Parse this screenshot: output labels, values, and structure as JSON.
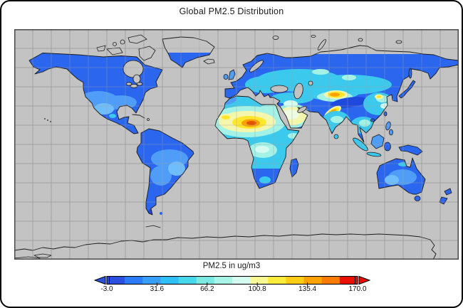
{
  "title": "Global PM2.5 Distribution",
  "map": {
    "ocean_color": "#c3c3c3",
    "grid_color": "#a0a0a0",
    "frame_color": "#4a4a4a",
    "coastline_color": "#1a1a1a",
    "grid_cols": 24,
    "grid_rows": 12,
    "palette": {
      "land_low_blue": "#2a66ee",
      "land_blue_light": "#4f9df6",
      "land_sky": "#6fbdfa",
      "cyan": "#3cc9ee",
      "cyan_light": "#a4f2e6",
      "cyan_pale": "#d6fcf2",
      "yellow_pale": "#f4f6ae",
      "yellow": "#ffe72e",
      "orange": "#ffa200",
      "orange_red": "#e25400",
      "navy": "#1d49dc",
      "no_data_gray": "#c3c3c3",
      "pale_white": "#eefbe2"
    }
  },
  "colorbar": {
    "label": "PM2.5 in ug/m3",
    "min": -3.0,
    "max": 170.0,
    "ticks": [
      "-3.0",
      "31.6",
      "66.2",
      "100.8",
      "135.4",
      "170.0"
    ],
    "tick_values": [
      -3.0,
      31.6,
      66.2,
      100.8,
      135.4,
      170.0
    ],
    "segments": [
      "#2b50e0",
      "#2b7cfa",
      "#38a0fc",
      "#2fc0f6",
      "#48d8ec",
      "#7ceae0",
      "#a8f4e6",
      "#d4fcf0",
      "#f8f894",
      "#fcec3c",
      "#ffce14",
      "#ffa200",
      "#f97c00",
      "#ea1000"
    ],
    "arrow_left_color": "#2b50e0",
    "arrow_right_color": "#e80c00"
  },
  "chart_data": {
    "type": "heatmap",
    "title": "Global PM2.5 Distribution",
    "colorbar_label": "PM2.5 in ug/m3",
    "units": "ug/m3",
    "scale_ticks": [
      -3.0,
      31.6,
      66.2,
      100.8,
      135.4,
      170.0
    ],
    "scale_range": [
      -3.0,
      170.0
    ],
    "projection": "equirectangular world map, lon -180..180, lat 90..-90",
    "graticule_spacing_deg": 15,
    "grid": true,
    "legend_position": "bottom, horizontal colorbar with triangular out-of-range arrows",
    "regions": [
      {
        "name": "Central Sahara (Niger/Chad)",
        "approx_pm25": 160,
        "appearance": "orange-red hotspot"
      },
      {
        "name": "Western Sahara / Mali",
        "approx_pm25": 120,
        "appearance": "yellow spot"
      },
      {
        "name": "Sahara fringe / Sahel",
        "approx_pm25": 95,
        "appearance": "pale yellow ring"
      },
      {
        "name": "Arabian Peninsula",
        "approx_pm25": 90,
        "appearance": "pale yellow-white"
      },
      {
        "name": "Taklamakan Desert (NW China)",
        "approx_pm25": 135,
        "appearance": "yellow-orange hotspot"
      },
      {
        "name": "Indus Valley (Pakistan / NW India)",
        "approx_pm25": 140,
        "appearance": "orange streak"
      },
      {
        "name": "Central China spot",
        "approx_pm25": 110,
        "appearance": "small yellow spot"
      },
      {
        "name": "North and East China",
        "approx_pm25": 75,
        "appearance": "light cyan"
      },
      {
        "name": "India peninsula",
        "approx_pm25": 55,
        "appearance": "cyan"
      },
      {
        "name": "Congo basin (Central Africa)",
        "approx_pm25": 75,
        "appearance": "light cyan"
      },
      {
        "name": "Europe",
        "approx_pm25": 35,
        "appearance": "cyan-blue"
      },
      {
        "name": "Russia / Siberia",
        "approx_pm25": 20,
        "appearance": "blue with cyan patches"
      },
      {
        "name": "North America",
        "approx_pm25": 10,
        "appearance": "blue"
      },
      {
        "name": "SW United States / Mexico",
        "approx_pm25": 30,
        "appearance": "lighter blue"
      },
      {
        "name": "South America",
        "approx_pm25": 10,
        "appearance": "blue"
      },
      {
        "name": "Amazon interior",
        "approx_pm25": 28,
        "appearance": "lighter blue patches"
      },
      {
        "name": "Australia",
        "approx_pm25": 12,
        "appearance": "blue with lighter patches"
      },
      {
        "name": "Tibetan Plateau",
        "approx_pm25": 0,
        "appearance": "dark navy blue"
      },
      {
        "name": "North Greenland, Arctic islands, Antarctica, oceans",
        "approx_pm25": null,
        "appearance": "gray = no data, coastline outline only"
      }
    ]
  }
}
